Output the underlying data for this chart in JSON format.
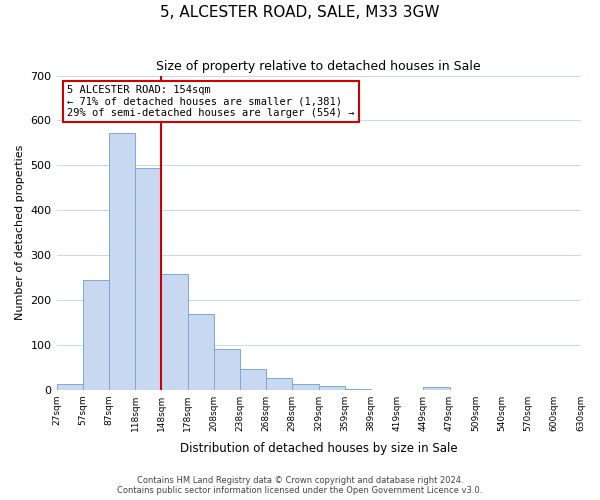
{
  "title": "5, ALCESTER ROAD, SALE, M33 3GW",
  "subtitle": "Size of property relative to detached houses in Sale",
  "xlabel": "Distribution of detached houses by size in Sale",
  "ylabel": "Number of detached properties",
  "bar_values": [
    12,
    245,
    573,
    493,
    258,
    168,
    90,
    47,
    27,
    13,
    8,
    2,
    0,
    0,
    5,
    0,
    0,
    0,
    0,
    0
  ],
  "bin_labels": [
    "27sqm",
    "57sqm",
    "87sqm",
    "118sqm",
    "148sqm",
    "178sqm",
    "208sqm",
    "238sqm",
    "268sqm",
    "298sqm",
    "329sqm",
    "359sqm",
    "389sqm",
    "419sqm",
    "449sqm",
    "479sqm",
    "509sqm",
    "540sqm",
    "570sqm",
    "600sqm",
    "630sqm"
  ],
  "bar_color": "#c8d8f0",
  "bar_edge_color": "#7aa8d8",
  "vline_x": 4.0,
  "vline_color": "#cc0000",
  "annotation_text": "5 ALCESTER ROAD: 154sqm\n← 71% of detached houses are smaller (1,381)\n29% of semi-detached houses are larger (554) →",
  "annotation_box_color": "#ffffff",
  "annotation_box_edge": "#cc0000",
  "ylim": [
    0,
    700
  ],
  "yticks": [
    0,
    100,
    200,
    300,
    400,
    500,
    600,
    700
  ],
  "footer_text": "Contains HM Land Registry data © Crown copyright and database right 2024.\nContains public sector information licensed under the Open Government Licence v3.0.",
  "figsize": [
    6.0,
    5.0
  ],
  "dpi": 100
}
